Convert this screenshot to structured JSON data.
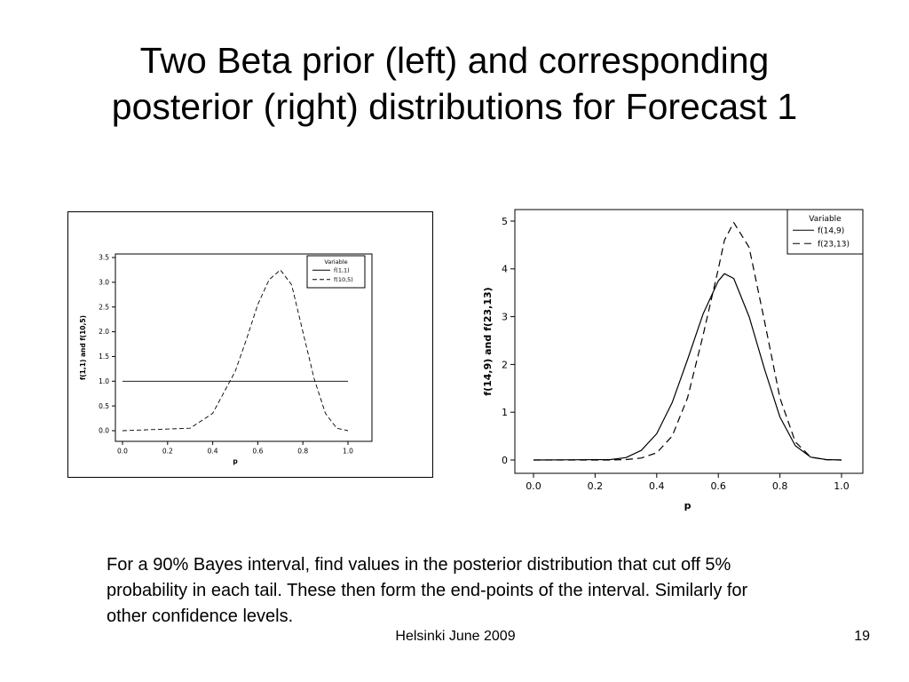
{
  "slide": {
    "title_lines": [
      "Two Beta prior (left) and corresponding",
      "posterior (right) distributions for Forecast 1"
    ],
    "body_text": "For a 90% Bayes interval, find values in the posterior distribution that cut off 5% probability in each tail. These then form the end-points of the interval. Similarly for other confidence levels.",
    "footer": "Helsinki June 2009",
    "page_number": "19"
  },
  "chart_data": [
    {
      "type": "line",
      "title": "",
      "xlabel": "p",
      "ylabel": "f(1,1) and f(10,5)",
      "xlim": [
        0,
        1
      ],
      "ylim": [
        0,
        3.5
      ],
      "xticks": [
        "0.0",
        "0.2",
        "0.4",
        "0.6",
        "0.8",
        "1.0"
      ],
      "yticks": [
        "0.0",
        "0.5",
        "1.0",
        "1.5",
        "2.0",
        "2.5",
        "3.0",
        "3.5"
      ],
      "legend": {
        "title": "Variable",
        "position": "top-right"
      },
      "grid": false,
      "x": [
        0.0,
        0.3,
        0.4,
        0.5,
        0.55,
        0.6,
        0.65,
        0.7,
        0.75,
        0.8,
        0.85,
        0.9,
        0.95,
        1.0
      ],
      "series": [
        {
          "name": "f(1,1)",
          "style": "solid",
          "values": [
            1,
            1,
            1,
            1,
            1,
            1,
            1,
            1,
            1,
            1,
            1,
            1,
            1,
            1
          ]
        },
        {
          "name": "f(10,5)",
          "style": "dashed",
          "values": [
            0.0,
            0.05,
            0.35,
            1.2,
            1.85,
            2.55,
            3.05,
            3.25,
            2.95,
            2.0,
            1.05,
            0.35,
            0.05,
            0.0
          ]
        }
      ]
    },
    {
      "type": "line",
      "title": "",
      "xlabel": "p",
      "ylabel": "f(14,9) and f(23,13)",
      "xlim": [
        0,
        1
      ],
      "ylim": [
        0,
        5
      ],
      "xticks": [
        "0.0",
        "0.2",
        "0.4",
        "0.6",
        "0.8",
        "1.0"
      ],
      "yticks": [
        "0",
        "1",
        "2",
        "3",
        "4",
        "5"
      ],
      "legend": {
        "title": "Variable",
        "position": "top-right"
      },
      "grid": false,
      "x": [
        0.0,
        0.25,
        0.3,
        0.35,
        0.4,
        0.45,
        0.5,
        0.55,
        0.6,
        0.62,
        0.65,
        0.7,
        0.75,
        0.8,
        0.85,
        0.9,
        0.95,
        1.0
      ],
      "series": [
        {
          "name": "f(14,9)",
          "style": "solid",
          "values": [
            0,
            0.01,
            0.05,
            0.2,
            0.55,
            1.2,
            2.1,
            3.05,
            3.75,
            3.9,
            3.8,
            3.0,
            1.9,
            0.9,
            0.3,
            0.06,
            0.01,
            0
          ]
        },
        {
          "name": "f(23,13)",
          "style": "dashed",
          "values": [
            0,
            0,
            0.01,
            0.04,
            0.15,
            0.5,
            1.3,
            2.6,
            4.0,
            4.6,
            4.97,
            4.45,
            2.9,
            1.3,
            0.38,
            0.06,
            0.005,
            0
          ]
        }
      ]
    }
  ]
}
